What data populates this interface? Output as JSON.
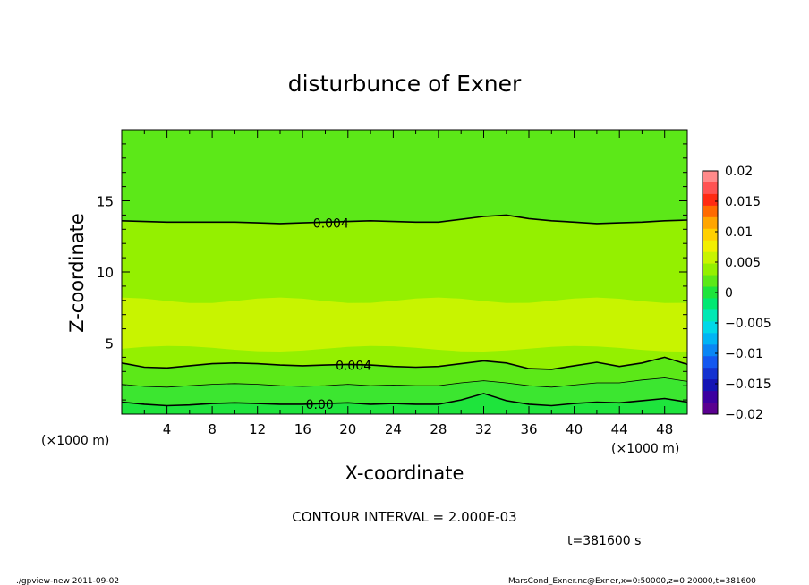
{
  "chart_data": {
    "type": "contour",
    "title": "disturbunce of Exner",
    "xlabel": "X-coordinate",
    "ylabel": "Z-coordinate",
    "x_unit_label": "(×1000 m)",
    "z_unit_label": "(×1000 m)",
    "xlim": [
      0,
      50
    ],
    "ylim": [
      0,
      20
    ],
    "x_ticks": [
      4,
      8,
      12,
      16,
      20,
      24,
      28,
      32,
      36,
      40,
      44,
      48
    ],
    "y_ticks": [
      5,
      10,
      15
    ],
    "contour_interval_text": "CONTOUR INTERVAL = 2.000E-03",
    "time_text": "t=381600 s",
    "colorbar": {
      "ticks": [
        0.02,
        0.015,
        0.01,
        0.005,
        0,
        -0.005,
        -0.01,
        -0.015,
        -0.02
      ],
      "tick_labels": [
        "0.02",
        "0.015",
        "0.01",
        "0.005",
        "0",
        "−0.005",
        "−0.01",
        "−0.015",
        "−0.02"
      ],
      "colors": [
        "#ff8a8a",
        "#ff5252",
        "#ff2a12",
        "#ff6a00",
        "#ffa500",
        "#ffd000",
        "#f2ef00",
        "#c8f400",
        "#94f000",
        "#5ce818",
        "#1ee43c",
        "#00e872",
        "#00e8b4",
        "#00d8e8",
        "#00b4f4",
        "#0a86f4",
        "#1458f0",
        "#1432d0",
        "#1414b4",
        "#3c00a0",
        "#5a0090"
      ]
    },
    "contour_labels": [
      "0.004",
      "0.004",
      "0.00"
    ],
    "contours": [
      {
        "level": 0.004,
        "label": "0.004",
        "x": [
          0,
          2,
          4,
          6,
          8,
          10,
          12,
          14,
          16,
          18,
          20,
          22,
          24,
          26,
          28,
          30,
          32,
          34,
          36,
          38,
          40,
          42,
          44,
          46,
          48,
          50
        ],
        "z": [
          13.6,
          13.55,
          13.5,
          13.5,
          13.5,
          13.5,
          13.45,
          13.4,
          13.45,
          13.5,
          13.55,
          13.6,
          13.55,
          13.5,
          13.5,
          13.7,
          13.9,
          14.0,
          13.75,
          13.6,
          13.5,
          13.4,
          13.45,
          13.5,
          13.6,
          13.65
        ]
      },
      {
        "level": 0.004,
        "label": "0.004",
        "x": [
          0,
          2,
          4,
          6,
          8,
          10,
          12,
          14,
          16,
          18,
          20,
          22,
          24,
          26,
          28,
          30,
          32,
          34,
          36,
          38,
          40,
          42,
          44,
          46,
          48,
          50
        ],
        "z": [
          3.6,
          3.3,
          3.25,
          3.4,
          3.55,
          3.6,
          3.55,
          3.45,
          3.4,
          3.45,
          3.5,
          3.45,
          3.35,
          3.3,
          3.35,
          3.55,
          3.75,
          3.6,
          3.2,
          3.15,
          3.4,
          3.65,
          3.35,
          3.6,
          4.0,
          3.5
        ]
      },
      {
        "level": 0.002,
        "label": "",
        "x": [
          0,
          2,
          4,
          6,
          8,
          10,
          12,
          14,
          16,
          18,
          20,
          22,
          24,
          26,
          28,
          30,
          32,
          34,
          36,
          38,
          40,
          42,
          44,
          46,
          48,
          50
        ],
        "z": [
          2.1,
          1.95,
          1.9,
          2.0,
          2.1,
          2.15,
          2.1,
          2.0,
          1.95,
          2.0,
          2.1,
          2.0,
          2.05,
          2.0,
          2.0,
          2.2,
          2.35,
          2.2,
          2.0,
          1.9,
          2.05,
          2.2,
          2.2,
          2.4,
          2.55,
          2.3
        ]
      },
      {
        "level": 0.0,
        "label": "0.00",
        "x": [
          0,
          2,
          4,
          6,
          8,
          10,
          12,
          14,
          16,
          18,
          20,
          22,
          24,
          26,
          28,
          30,
          32,
          34,
          36,
          38,
          40,
          42,
          44,
          46,
          48,
          50
        ],
        "z": [
          0.85,
          0.7,
          0.6,
          0.65,
          0.75,
          0.8,
          0.75,
          0.7,
          0.7,
          0.75,
          0.8,
          0.7,
          0.75,
          0.7,
          0.7,
          1.0,
          1.45,
          0.95,
          0.7,
          0.6,
          0.75,
          0.85,
          0.8,
          0.95,
          1.1,
          0.85
        ]
      }
    ],
    "filled_bands": [
      {
        "range": "0.005–0.0075",
        "color": "#c8f400",
        "region": "z≈5–8 (×1000 m)"
      },
      {
        "range": "0.0025–0.005",
        "color": "#94f000",
        "region": "z≈3.5–5 and z≈8–14"
      },
      {
        "range": "0–0.0025",
        "color": "#5ce818",
        "region": "z≈0.5–3.5 and z>14"
      },
      {
        "range": "-0.0025–0",
        "color": "#1ee43c",
        "region": "z<0.8"
      }
    ]
  },
  "footer": {
    "left": "./gpview-new   2011-09-02",
    "right": "MarsCond_Exner.nc@Exner,x=0:50000,z=0:20000,t=381600"
  }
}
